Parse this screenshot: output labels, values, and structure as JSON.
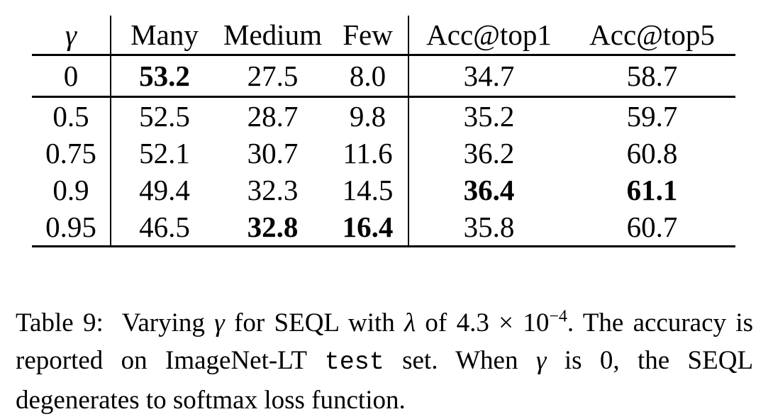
{
  "table": {
    "headers": [
      "γ",
      "Many",
      "Medium",
      "Few",
      "Acc@top1",
      "Acc@top5"
    ],
    "rows": [
      {
        "gamma": "0",
        "many": "53.2",
        "medium": "27.5",
        "few": "8.0",
        "top1": "34.7",
        "top5": "58.7"
      },
      {
        "gamma": "0.5",
        "many": "52.5",
        "medium": "28.7",
        "few": "9.8",
        "top1": "35.2",
        "top5": "59.7"
      },
      {
        "gamma": "0.75",
        "many": "52.1",
        "medium": "30.7",
        "few": "11.6",
        "top1": "36.2",
        "top5": "60.8"
      },
      {
        "gamma": "0.9",
        "many": "49.4",
        "medium": "32.3",
        "few": "14.5",
        "top1": "36.4",
        "top5": "61.1"
      },
      {
        "gamma": "0.95",
        "many": "46.5",
        "medium": "32.8",
        "few": "16.4",
        "top1": "35.8",
        "top5": "60.7"
      }
    ]
  },
  "caption": {
    "label": "Table 9:",
    "t1": "Varying",
    "gamma": "γ",
    "t2": "for SEQL with",
    "lambda": "λ",
    "t3": "of",
    "mantissa": "4.3",
    "times": "×",
    "base": "10",
    "exponent": "−4",
    "t4": ". The accuracy is reported on ImageNet-LT",
    "code": "test",
    "t5": "set. When",
    "t6": "is 0, the SEQL degenerates to softmax loss function."
  }
}
